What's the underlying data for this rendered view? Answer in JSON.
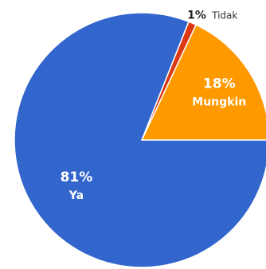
{
  "chart_data": {
    "type": "pie",
    "start_angle_deg": 0,
    "direction": "counterclockwise",
    "slices": [
      {
        "label": "Mungkin",
        "value": 18,
        "value_label": "18%",
        "color": "#FF9900",
        "label_position": "inside"
      },
      {
        "label": "Tidak",
        "value": 1,
        "value_label": "1%",
        "color": "#DC3912",
        "label_position": "outside"
      },
      {
        "label": "Ya",
        "value": 81,
        "value_label": "81%",
        "color": "#3366CC",
        "label_position": "inside"
      }
    ]
  }
}
